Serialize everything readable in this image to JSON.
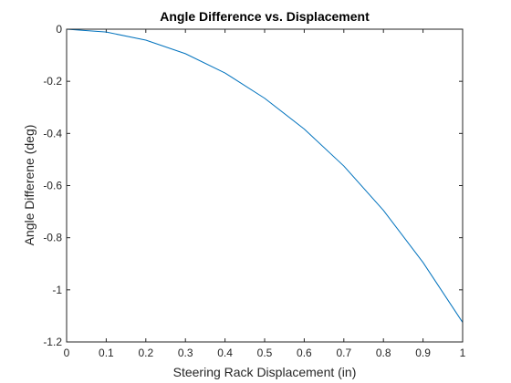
{
  "chart_data": {
    "type": "line",
    "title": "Angle Difference vs. Displacement",
    "xlabel": "Steering Rack Displacement (in)",
    "ylabel": "Angle Differene (deg)",
    "xlim": [
      0,
      1
    ],
    "ylim": [
      -1.2,
      0
    ],
    "x_ticks": [
      "0",
      "0.1",
      "0.2",
      "0.3",
      "0.4",
      "0.5",
      "0.6",
      "0.7",
      "0.8",
      "0.9",
      "1"
    ],
    "y_ticks": [
      "0",
      "-0.2",
      "-0.4",
      "-0.6",
      "-0.8",
      "-1",
      "-1.2"
    ],
    "grid": false,
    "series": [
      {
        "color": "#0072bd",
        "x": [
          0,
          0.1,
          0.2,
          0.3,
          0.4,
          0.5,
          0.6,
          0.7,
          0.8,
          0.9,
          1.0
        ],
        "y": [
          0,
          -0.011,
          -0.042,
          -0.094,
          -0.168,
          -0.265,
          -0.383,
          -0.525,
          -0.695,
          -0.895,
          -1.125
        ]
      }
    ],
    "colors": {
      "axis": "#262626",
      "line": "#0072bd",
      "background": "#ffffff"
    }
  }
}
